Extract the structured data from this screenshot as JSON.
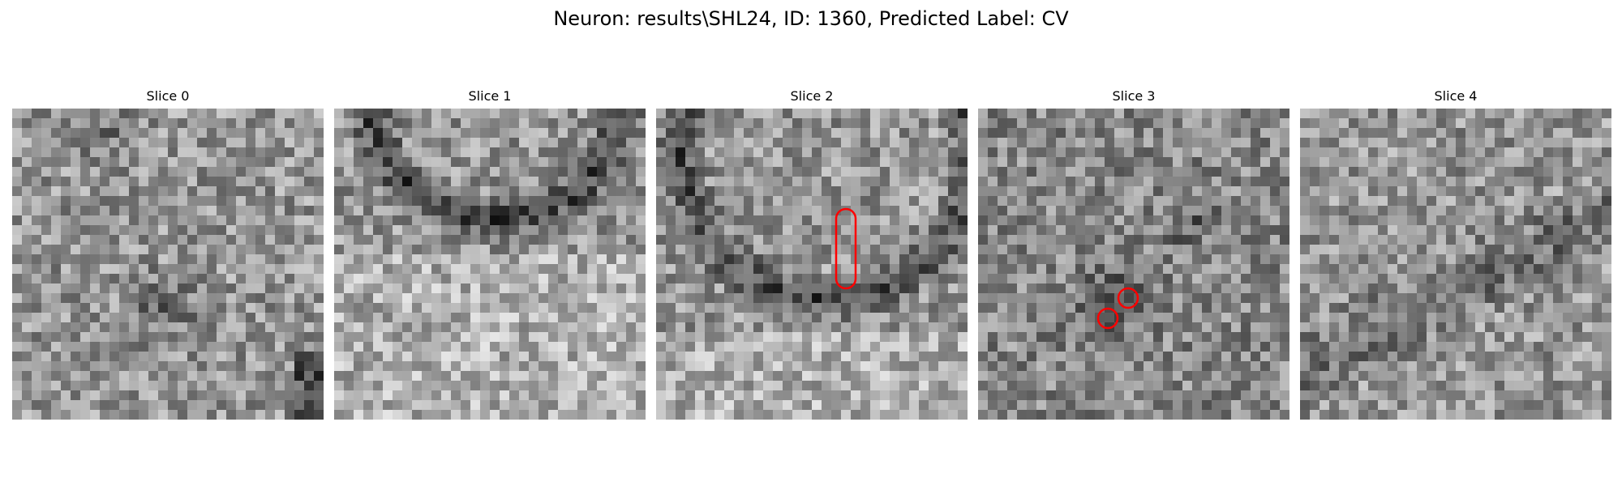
{
  "figure": {
    "title": "Neuron: results\\SHL24, ID: 1360, Predicted Label: CV"
  },
  "colors": {
    "annotation": "#ff0000",
    "background": "#ffffff"
  },
  "slices": [
    {
      "title": "Slice 0",
      "annotations": []
    },
    {
      "title": "Slice 1",
      "annotations": []
    },
    {
      "title": "Slice 2",
      "annotations": [
        {
          "shape": "capsule"
        }
      ]
    },
    {
      "title": "Slice 3",
      "annotations": [
        {
          "shape": "circle"
        },
        {
          "shape": "circle"
        }
      ]
    },
    {
      "title": "Slice 4",
      "annotations": []
    }
  ]
}
